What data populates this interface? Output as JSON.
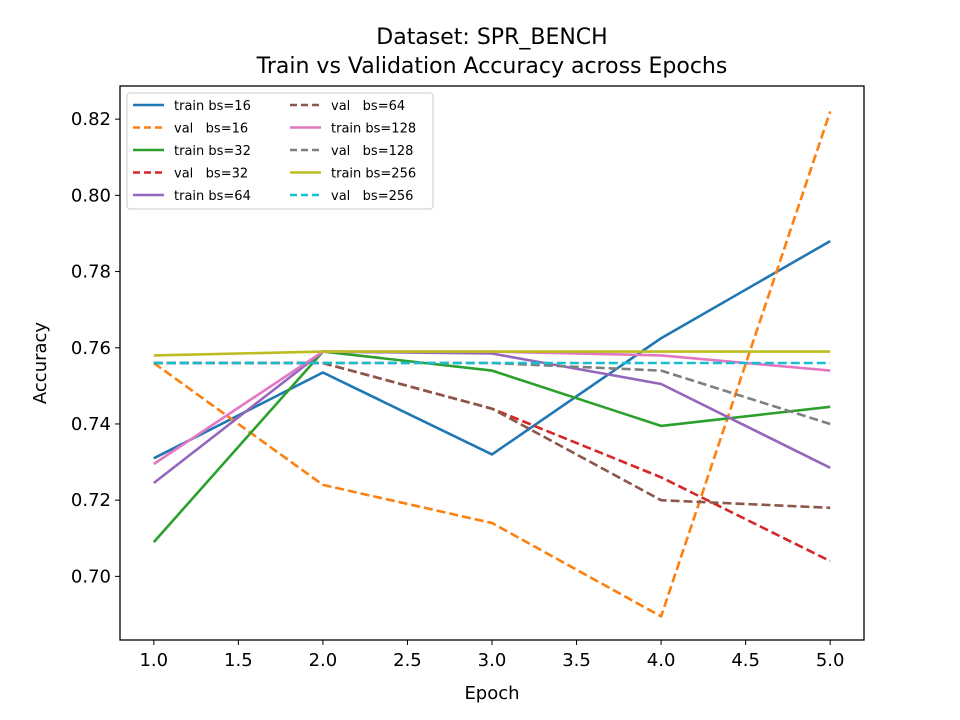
{
  "chart_data": {
    "type": "line",
    "title": "Dataset: SPR_BENCH",
    "subtitle": "Train vs Validation Accuracy across Epochs",
    "xlabel": "Epoch",
    "ylabel": "Accuracy",
    "xlim": [
      0.8,
      5.2
    ],
    "ylim": [
      0.6833,
      0.8287
    ],
    "xticks": [
      1.0,
      1.5,
      2.0,
      2.5,
      3.0,
      3.5,
      4.0,
      4.5,
      5.0
    ],
    "xtick_labels": [
      "1.0",
      "1.5",
      "2.0",
      "2.5",
      "3.0",
      "3.5",
      "4.0",
      "4.5",
      "5.0"
    ],
    "yticks": [
      0.7,
      0.72,
      0.74,
      0.76,
      0.78,
      0.8,
      0.82
    ],
    "ytick_labels": [
      "0.70",
      "0.72",
      "0.74",
      "0.76",
      "0.78",
      "0.80",
      "0.82"
    ],
    "grid": false,
    "legend_position": "top-left",
    "legend_columns": 2,
    "x": [
      1,
      2,
      3,
      4,
      5
    ],
    "series": [
      {
        "name": "train bs=16",
        "color": "#1f77b4",
        "style": "solid",
        "values": [
          0.731,
          0.7535,
          0.732,
          0.7625,
          0.788
        ]
      },
      {
        "name": "val   bs=16",
        "color": "#ff7f0e",
        "style": "dashed",
        "values": [
          0.756,
          0.724,
          0.714,
          0.6895,
          0.822
        ]
      },
      {
        "name": "train bs=32",
        "color": "#2ca02c",
        "style": "solid",
        "values": [
          0.709,
          0.759,
          0.754,
          0.7395,
          0.7445
        ]
      },
      {
        "name": "val   bs=32",
        "color": "#d62728",
        "style": "dashed",
        "values": [
          0.756,
          0.756,
          0.744,
          0.726,
          0.704
        ]
      },
      {
        "name": "train bs=64",
        "color": "#9467bd",
        "style": "solid",
        "values": [
          0.7245,
          0.759,
          0.7585,
          0.7505,
          0.7285
        ]
      },
      {
        "name": "val   bs=64",
        "color": "#8c564b",
        "style": "dashed",
        "values": [
          0.756,
          0.756,
          0.744,
          0.72,
          0.718
        ]
      },
      {
        "name": "train bs=128",
        "color": "#e377c2",
        "style": "solid",
        "values": [
          0.7295,
          0.759,
          0.759,
          0.758,
          0.754
        ]
      },
      {
        "name": "val   bs=128",
        "color": "#7f7f7f",
        "style": "dashed",
        "values": [
          0.756,
          0.756,
          0.756,
          0.754,
          0.74
        ]
      },
      {
        "name": "train bs=256",
        "color": "#bcbd22",
        "style": "solid",
        "values": [
          0.758,
          0.759,
          0.759,
          0.759,
          0.759
        ]
      },
      {
        "name": "val   bs=256",
        "color": "#17becf",
        "style": "dashed",
        "values": [
          0.756,
          0.756,
          0.756,
          0.756,
          0.756
        ]
      }
    ]
  }
}
